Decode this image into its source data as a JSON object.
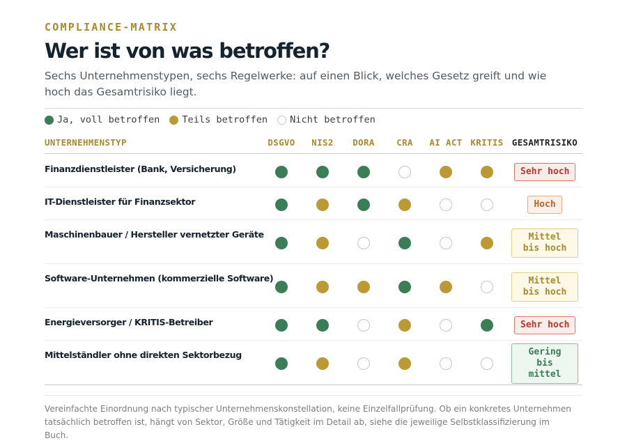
{
  "eyebrow": "COMPLIANCE-MATRIX",
  "title": "Wer ist von was betroffen?",
  "subtitle": "Sechs Unternehmenstypen, sechs Regelwerke: auf einen Blick, welches Gesetz greift und wie hoch das Gesamtrisiko liegt.",
  "legend": [
    {
      "status": "full",
      "label": "Ja, voll betroffen"
    },
    {
      "status": "partial",
      "label": "Teils betroffen"
    },
    {
      "status": "none",
      "label": "Nicht betroffen"
    }
  ],
  "table": {
    "type_header": "UNTERNEHMENSTYP",
    "regulations": [
      "DSGVO",
      "NIS2",
      "DORA",
      "CRA",
      "AI ACT",
      "KRITIS"
    ],
    "total_header": "GESAMTRISIKO",
    "rows": [
      {
        "type": "Finanzdienstleister (Bank, Versicherung)",
        "statuses": [
          "full",
          "full",
          "full",
          "none",
          "partial",
          "partial"
        ],
        "risk": "Sehr hoch",
        "risk_level": "sehr-hoch"
      },
      {
        "type": "IT-Dienstleister für Finanzsektor",
        "statuses": [
          "full",
          "partial",
          "full",
          "partial",
          "none",
          "none"
        ],
        "risk": "Hoch",
        "risk_level": "hoch"
      },
      {
        "type": "Maschinenbauer / Hersteller vernetzter Geräte",
        "statuses": [
          "full",
          "partial",
          "none",
          "full",
          "none",
          "partial"
        ],
        "risk": "Mittel bis hoch",
        "risk_level": "mittel"
      },
      {
        "type": "Software-Unternehmen (kommerzielle Software)",
        "statuses": [
          "full",
          "partial",
          "partial",
          "full",
          "partial",
          "none"
        ],
        "risk": "Mittel bis hoch",
        "risk_level": "mittel"
      },
      {
        "type": "Energieversorger / KRITIS-Betreiber",
        "statuses": [
          "full",
          "full",
          "none",
          "partial",
          "none",
          "full"
        ],
        "risk": "Sehr hoch",
        "risk_level": "sehr-hoch"
      },
      {
        "type": "Mittelständler ohne direkten Sektorbezug",
        "statuses": [
          "full",
          "partial",
          "none",
          "partial",
          "none",
          "none"
        ],
        "risk": "Gering bis mittel",
        "risk_level": "gering"
      }
    ]
  },
  "footnote": "Vereinfachte Einordnung nach typischer Unternehmenskonstellation, keine Einzelfallprüfung. Ob ein konkretes Unternehmen tatsächlich betroffen ist, hängt von Sektor, Größe und Tätigkeit im Detail ab, siehe die jeweilige Selbstklassifizierung im Buch.",
  "colors": {
    "full": "#3a7d56",
    "partial": "#bb9a36",
    "none_border": "#c6c6c6",
    "accent": "#a98a2c",
    "title": "#16222e"
  }
}
